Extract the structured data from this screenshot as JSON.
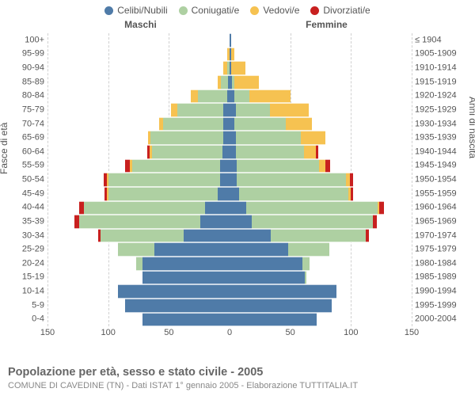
{
  "chart": {
    "type": "population-pyramid-stacked",
    "background_color": "#ffffff",
    "gridline_color": "#d0d0d0",
    "center_line_color": "#aaaaaa",
    "text_color": "#555555",
    "font_family": "Arial",
    "x_max": 150,
    "x_ticks": [
      150,
      100,
      50,
      0,
      50,
      100,
      150
    ],
    "legend": {
      "items": [
        {
          "label": "Celibi/Nubili",
          "color": "#4f7ba8"
        },
        {
          "label": "Coniugati/e",
          "color": "#aed0a2"
        },
        {
          "label": "Vedovi/e",
          "color": "#f6c251"
        },
        {
          "label": "Divorziati/e",
          "color": "#c8201f"
        }
      ]
    },
    "sex_labels": {
      "male": "Maschi",
      "female": "Femmine"
    },
    "y_title_left": "Fasce di età",
    "y_title_right": "Anni di nascita",
    "footer_title": "Popolazione per età, sesso e stato civile - 2005",
    "footer_sub": "COMUNE DI CAVEDINE (TN) - Dati ISTAT 1° gennaio 2005 - Elaborazione TUTTITALIA.IT",
    "categories": [
      {
        "age": "100+",
        "birth": "≤ 1904"
      },
      {
        "age": "95-99",
        "birth": "1905-1909"
      },
      {
        "age": "90-94",
        "birth": "1910-1914"
      },
      {
        "age": "85-89",
        "birth": "1915-1919"
      },
      {
        "age": "80-84",
        "birth": "1920-1924"
      },
      {
        "age": "75-79",
        "birth": "1925-1929"
      },
      {
        "age": "70-74",
        "birth": "1930-1934"
      },
      {
        "age": "65-69",
        "birth": "1935-1939"
      },
      {
        "age": "60-64",
        "birth": "1940-1944"
      },
      {
        "age": "55-59",
        "birth": "1945-1949"
      },
      {
        "age": "50-54",
        "birth": "1950-1954"
      },
      {
        "age": "45-49",
        "birth": "1955-1959"
      },
      {
        "age": "40-44",
        "birth": "1960-1964"
      },
      {
        "age": "35-39",
        "birth": "1965-1969"
      },
      {
        "age": "30-34",
        "birth": "1970-1974"
      },
      {
        "age": "25-29",
        "birth": "1975-1979"
      },
      {
        "age": "20-24",
        "birth": "1980-1984"
      },
      {
        "age": "15-19",
        "birth": "1985-1989"
      },
      {
        "age": "10-14",
        "birth": "1990-1994"
      },
      {
        "age": "5-9",
        "birth": "1995-1999"
      },
      {
        "age": "0-4",
        "birth": "2000-2004"
      }
    ],
    "male": [
      {
        "c": 0,
        "m": 0,
        "w": 0,
        "d": 0
      },
      {
        "c": 0,
        "m": 0,
        "w": 2,
        "d": 0
      },
      {
        "c": 0,
        "m": 2,
        "w": 3,
        "d": 0
      },
      {
        "c": 1,
        "m": 6,
        "w": 3,
        "d": 0
      },
      {
        "c": 2,
        "m": 24,
        "w": 6,
        "d": 0
      },
      {
        "c": 5,
        "m": 38,
        "w": 5,
        "d": 0
      },
      {
        "c": 5,
        "m": 50,
        "w": 3,
        "d": 0
      },
      {
        "c": 5,
        "m": 60,
        "w": 2,
        "d": 0
      },
      {
        "c": 6,
        "m": 58,
        "w": 2,
        "d": 2
      },
      {
        "c": 8,
        "m": 72,
        "w": 2,
        "d": 4
      },
      {
        "c": 8,
        "m": 92,
        "w": 1,
        "d": 3
      },
      {
        "c": 10,
        "m": 90,
        "w": 1,
        "d": 2
      },
      {
        "c": 20,
        "m": 100,
        "w": 0,
        "d": 4
      },
      {
        "c": 24,
        "m": 100,
        "w": 0,
        "d": 4
      },
      {
        "c": 38,
        "m": 68,
        "w": 0,
        "d": 2
      },
      {
        "c": 62,
        "m": 30,
        "w": 0,
        "d": 0
      },
      {
        "c": 72,
        "m": 5,
        "w": 0,
        "d": 0
      },
      {
        "c": 72,
        "m": 0,
        "w": 0,
        "d": 0
      },
      {
        "c": 92,
        "m": 0,
        "w": 0,
        "d": 0
      },
      {
        "c": 86,
        "m": 0,
        "w": 0,
        "d": 0
      },
      {
        "c": 72,
        "m": 0,
        "w": 0,
        "d": 0
      }
    ],
    "female": [
      {
        "c": 1,
        "m": 0,
        "w": 0,
        "d": 0
      },
      {
        "c": 1,
        "m": 0,
        "w": 3,
        "d": 0
      },
      {
        "c": 1,
        "m": 0,
        "w": 12,
        "d": 0
      },
      {
        "c": 2,
        "m": 2,
        "w": 20,
        "d": 0
      },
      {
        "c": 4,
        "m": 12,
        "w": 34,
        "d": 0
      },
      {
        "c": 5,
        "m": 28,
        "w": 32,
        "d": 0
      },
      {
        "c": 4,
        "m": 42,
        "w": 22,
        "d": 0
      },
      {
        "c": 5,
        "m": 54,
        "w": 20,
        "d": 0
      },
      {
        "c": 5,
        "m": 56,
        "w": 10,
        "d": 2
      },
      {
        "c": 6,
        "m": 68,
        "w": 5,
        "d": 4
      },
      {
        "c": 6,
        "m": 90,
        "w": 3,
        "d": 3
      },
      {
        "c": 8,
        "m": 90,
        "w": 2,
        "d": 2
      },
      {
        "c": 14,
        "m": 108,
        "w": 1,
        "d": 4
      },
      {
        "c": 18,
        "m": 100,
        "w": 0,
        "d": 3
      },
      {
        "c": 34,
        "m": 78,
        "w": 0,
        "d": 3
      },
      {
        "c": 48,
        "m": 34,
        "w": 0,
        "d": 0
      },
      {
        "c": 60,
        "m": 6,
        "w": 0,
        "d": 0
      },
      {
        "c": 62,
        "m": 1,
        "w": 0,
        "d": 0
      },
      {
        "c": 88,
        "m": 0,
        "w": 0,
        "d": 0
      },
      {
        "c": 84,
        "m": 0,
        "w": 0,
        "d": 0
      },
      {
        "c": 72,
        "m": 0,
        "w": 0,
        "d": 0
      }
    ]
  }
}
